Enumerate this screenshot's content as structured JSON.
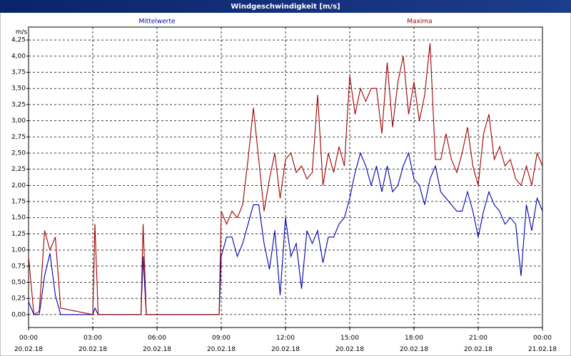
{
  "chart_data": {
    "type": "line",
    "title": "Windgeschwindigkeit [m/s]",
    "y_label": "m/s",
    "x": [
      0,
      0.25,
      0.5,
      0.75,
      1,
      1.25,
      1.5,
      3,
      3.1,
      3.25,
      5.25,
      5.35,
      5.5,
      8.9,
      9,
      9.25,
      9.5,
      9.75,
      10,
      10.25,
      10.5,
      10.75,
      11,
      11.25,
      11.5,
      11.75,
      12,
      12.25,
      12.5,
      12.75,
      13,
      13.25,
      13.5,
      13.75,
      14,
      14.25,
      14.5,
      14.75,
      15,
      15.25,
      15.5,
      15.75,
      16,
      16.25,
      16.5,
      16.75,
      17,
      17.25,
      17.5,
      17.75,
      18,
      18.25,
      18.5,
      18.75,
      19,
      19.25,
      19.5,
      19.75,
      20,
      20.25,
      20.5,
      20.75,
      21,
      21.25,
      21.5,
      21.75,
      22,
      22.25,
      22.5,
      22.75,
      23,
      23.25,
      23.5,
      23.75,
      24
    ],
    "series": [
      {
        "name": "Mittelwerte",
        "color": "#0000b0",
        "values": [
          0.2,
          0,
          0,
          0.6,
          0.95,
          0.3,
          0,
          0,
          0.1,
          0,
          0,
          0.9,
          0,
          0,
          0.9,
          1.2,
          1.2,
          0.9,
          1.1,
          1.4,
          1.7,
          1.7,
          1.1,
          0.7,
          1.3,
          0.3,
          1.5,
          0.9,
          1.1,
          0.4,
          1.3,
          1.1,
          1.3,
          0.8,
          1.2,
          1.2,
          1.4,
          1.5,
          1.8,
          2.2,
          2.5,
          2.3,
          2.0,
          2.3,
          1.9,
          2.3,
          1.9,
          2.0,
          2.3,
          2.5,
          2.1,
          2.0,
          1.7,
          2.1,
          2.3,
          1.9,
          1.8,
          1.7,
          1.6,
          1.6,
          1.9,
          1.6,
          1.2,
          1.6,
          1.9,
          1.7,
          1.6,
          1.4,
          1.5,
          1.4,
          0.6,
          1.7,
          1.3,
          1.8,
          1.6
        ]
      },
      {
        "name": "Maxima",
        "color": "#a00000",
        "values": [
          0.9,
          0,
          0.05,
          1.3,
          1.0,
          1.2,
          0.1,
          0,
          1.4,
          0,
          0,
          1.4,
          0,
          0,
          1.6,
          1.4,
          1.6,
          1.5,
          1.7,
          2.4,
          3.2,
          2.4,
          1.6,
          2.1,
          2.5,
          1.8,
          2.4,
          2.5,
          2.2,
          2.3,
          2.1,
          2.2,
          3.4,
          2.0,
          2.5,
          2.2,
          2.6,
          2.3,
          3.7,
          3.1,
          3.5,
          3.3,
          3.5,
          3.5,
          2.8,
          3.9,
          2.9,
          3.6,
          4.0,
          3.1,
          3.6,
          3.0,
          3.4,
          4.2,
          2.4,
          2.4,
          2.8,
          2.4,
          2.2,
          2.5,
          2.9,
          2.3,
          2.0,
          2.8,
          3.1,
          2.4,
          2.6,
          2.3,
          2.4,
          2.1,
          2.0,
          2.3,
          2.0,
          2.5,
          2.3
        ]
      }
    ],
    "xlim": [
      0,
      24
    ],
    "xticks": [
      {
        "value": 0,
        "label": "00:00\n20.02.18"
      },
      {
        "value": 3,
        "label": "03:00\n20.02.18"
      },
      {
        "value": 6,
        "label": "06:00\n20.02.18"
      },
      {
        "value": 9,
        "label": "09:00\n20.02.18"
      },
      {
        "value": 12,
        "label": "12:00\n20.02.18"
      },
      {
        "value": 15,
        "label": "15:00\n20.02.18"
      },
      {
        "value": 18,
        "label": "18:00\n20.02.18"
      },
      {
        "value": 21,
        "label": "21:00\n20.02.18"
      },
      {
        "value": 24,
        "label": "00:00\n21.02.18"
      }
    ],
    "ylim": [
      -0.2,
      4.45
    ],
    "yticks": [
      {
        "value": 0,
        "label": "0,00"
      },
      {
        "value": 0.25,
        "label": "0,25"
      },
      {
        "value": 0.5,
        "label": "0,50"
      },
      {
        "value": 0.75,
        "label": "0,75"
      },
      {
        "value": 1,
        "label": "1,00"
      },
      {
        "value": 1.25,
        "label": "1,25"
      },
      {
        "value": 1.5,
        "label": "1,50"
      },
      {
        "value": 1.75,
        "label": "1,75"
      },
      {
        "value": 2,
        "label": "2,00"
      },
      {
        "value": 2.25,
        "label": "2,25"
      },
      {
        "value": 2.5,
        "label": "2,50"
      },
      {
        "value": 2.75,
        "label": "2,75"
      },
      {
        "value": 3,
        "label": "3,00"
      },
      {
        "value": 3.25,
        "label": "3,25"
      },
      {
        "value": 3.5,
        "label": "3,50"
      },
      {
        "value": 3.75,
        "label": "3,75"
      },
      {
        "value": 4,
        "label": "4,00"
      },
      {
        "value": 4.25,
        "label": "4,25"
      }
    ],
    "grid": true,
    "legend": "top"
  }
}
